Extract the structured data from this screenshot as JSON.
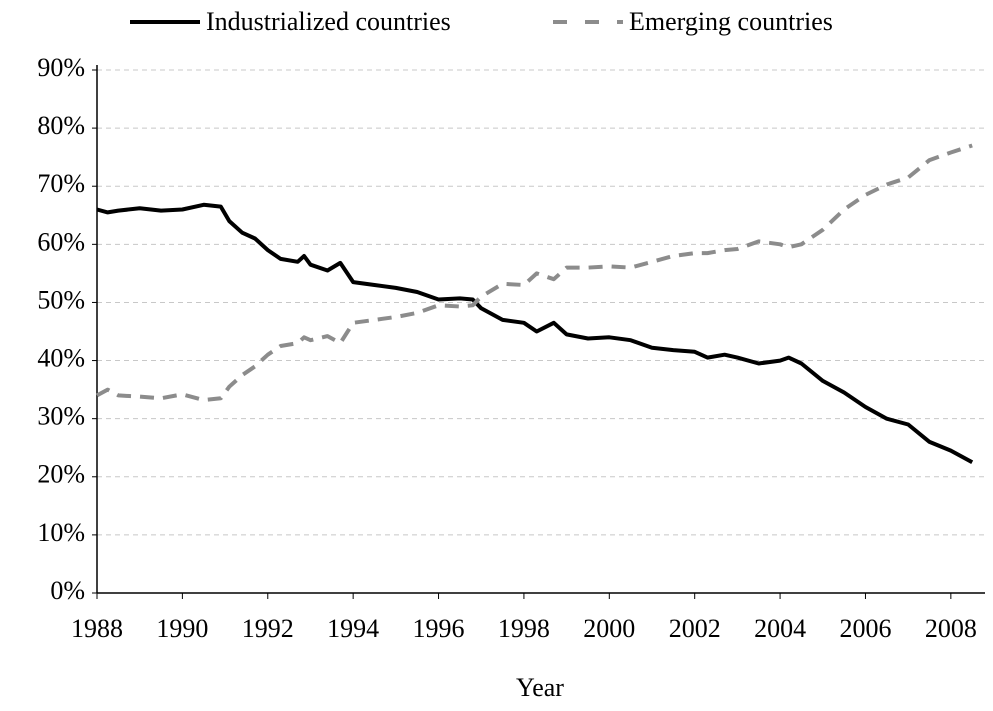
{
  "chart_data": {
    "type": "line",
    "x_label": "Year",
    "x": [
      1988,
      1988.25,
      1988.5,
      1989,
      1989.5,
      1990,
      1990.5,
      1990.9,
      1991.1,
      1991.4,
      1991.7,
      1992,
      1992.3,
      1992.7,
      1992.85,
      1993,
      1993.4,
      1993.7,
      1994,
      1994.5,
      1995,
      1995.5,
      1996,
      1996.5,
      1996.8,
      1997,
      1997.5,
      1998,
      1998.3,
      1998.7,
      1999,
      1999.5,
      2000,
      2000.5,
      2001,
      2001.5,
      2002,
      2002.3,
      2002.7,
      2003,
      2003.5,
      2004,
      2004.2,
      2004.5,
      2005,
      2005.5,
      2006,
      2006.5,
      2007,
      2007.5,
      2008,
      2008.5
    ],
    "series": [
      {
        "name": "Industrialized countries",
        "color": "#000000",
        "dashed": false,
        "values": [
          66,
          65.5,
          65.8,
          66.2,
          65.8,
          66,
          66.8,
          66.5,
          64,
          62,
          61,
          59,
          57.5,
          57,
          58,
          56.5,
          55.5,
          56.8,
          53.5,
          53,
          52.5,
          51.8,
          50.5,
          50.7,
          50.5,
          49,
          47,
          46.5,
          45,
          46.5,
          44.5,
          43.8,
          44,
          43.5,
          42.2,
          41.8,
          41.5,
          40.5,
          41,
          40.5,
          39.5,
          40,
          40.5,
          39.5,
          36.5,
          34.5,
          32,
          30,
          29,
          26,
          24.5,
          22.5
        ]
      },
      {
        "name": "Emerging countries",
        "color": "#8c8c8c",
        "dashed": true,
        "values": [
          34,
          35,
          34,
          33.8,
          33.5,
          34.2,
          33.2,
          33.5,
          35.5,
          37.5,
          39,
          41,
          42.5,
          43,
          44,
          43.5,
          44.2,
          43,
          46.5,
          47,
          47.5,
          48.2,
          49.5,
          49.3,
          49.5,
          51,
          53.2,
          53,
          55,
          54,
          56,
          56,
          56.2,
          56,
          57,
          58,
          58.5,
          58.5,
          59,
          59.2,
          60.5,
          60,
          59.5,
          60,
          62.5,
          66,
          68.5,
          70.3,
          71.5,
          74.5,
          75.8,
          77
        ]
      }
    ],
    "xlim": [
      1988,
      2008.8
    ],
    "xticks": [
      1988,
      1990,
      1992,
      1994,
      1996,
      1998,
      2000,
      2002,
      2004,
      2006,
      2008
    ],
    "ylim": [
      0,
      90
    ],
    "yticks": [
      {
        "value": 0,
        "label": "0%"
      },
      {
        "value": 10,
        "label": "10%"
      },
      {
        "value": 20,
        "label": "20%"
      },
      {
        "value": 30,
        "label": "30%"
      },
      {
        "value": 40,
        "label": "40%"
      },
      {
        "value": 50,
        "label": "50%"
      },
      {
        "value": 60,
        "label": "60%"
      },
      {
        "value": 70,
        "label": "70%"
      },
      {
        "value": 80,
        "label": "80%"
      },
      {
        "value": 90,
        "label": "90%"
      }
    ],
    "grid": true,
    "legend": "top"
  }
}
